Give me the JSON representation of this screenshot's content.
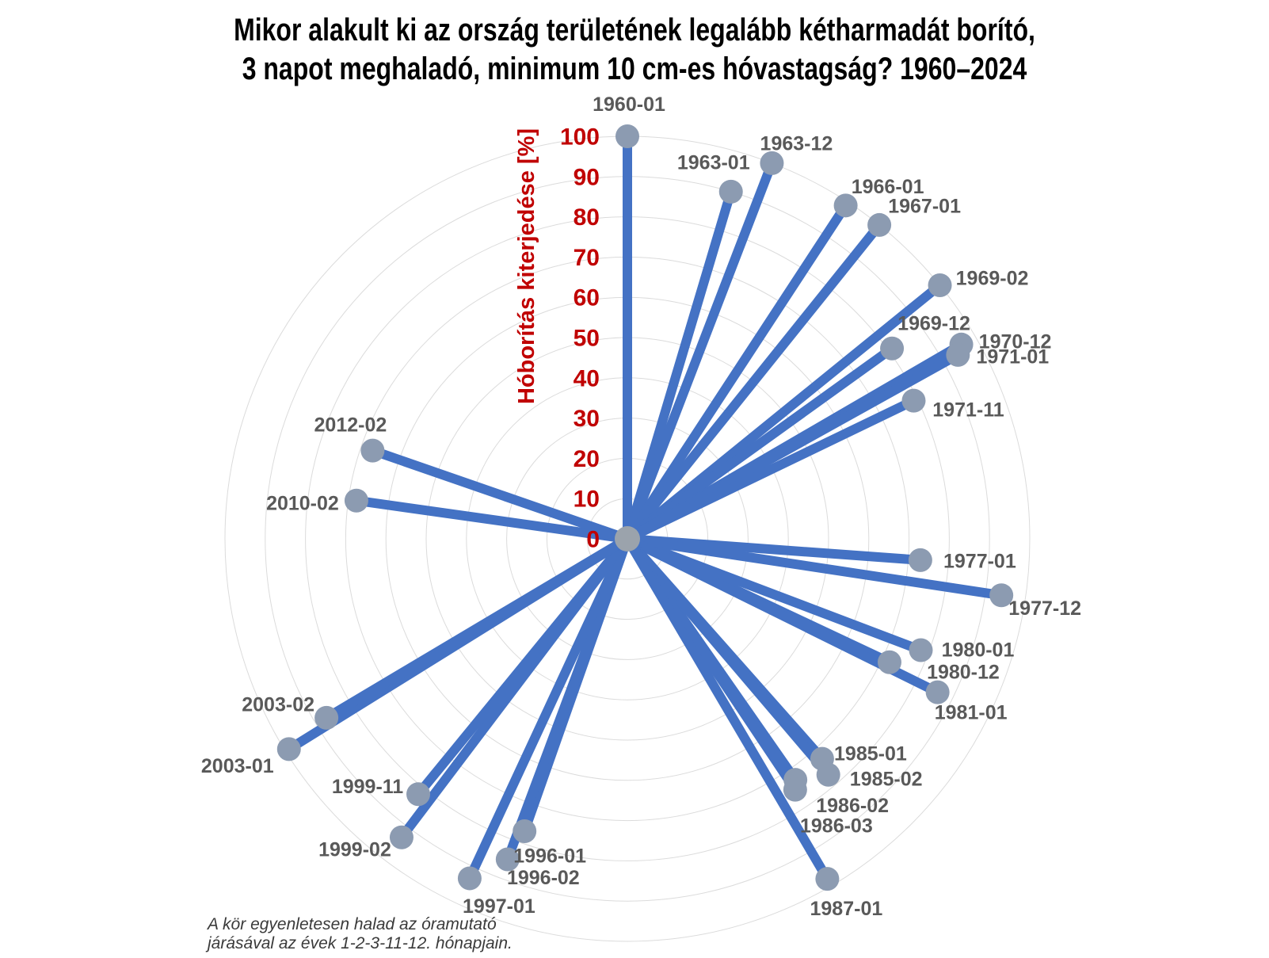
{
  "title": {
    "line1": "Mikor alakult ki az ország területének legalább kétharmadát borító,",
    "line2": "3 napot meghaladó, minimum 10 cm-es hóvastagság? 1960–2024"
  },
  "footnote": {
    "line1": "A kör egyenletesen halad az óramutató",
    "line2": "járásával az évek 1-2-3-11-12. hónapjain."
  },
  "chart_data": {
    "type": "scatter",
    "subtype": "polar-lollipop",
    "title": "Mikor alakult ki az ország területének legalább kétharmadát borító, 3 napot meghaladó, minimum 10 cm-es hóvastagság? 1960–2024",
    "axis_label": "Hóborítás kiterjedése [%]",
    "ticks": [
      0,
      10,
      20,
      30,
      40,
      50,
      60,
      70,
      80,
      90,
      100
    ],
    "range": [
      0,
      100
    ],
    "grid": true,
    "legend": "none",
    "angle_rule": "A kör egyenletesen halad az óramutató járásával az évek 1-2-3-11-12. hónapjain. 65 év × 5 hónap = 325 egyenlő lépés, az óramutató járása szerint, 1960-01 felül.",
    "slots_total": 325,
    "points": [
      {
        "label": "1960-01",
        "slot": 0,
        "value": 100,
        "label_offset": [
          2,
          -41
        ]
      },
      {
        "label": "1963-01",
        "slot": 15,
        "value": 90,
        "label_offset": [
          -22,
          -37
        ]
      },
      {
        "label": "1963-12",
        "slot": 19,
        "value": 100,
        "label_offset": [
          31,
          -25
        ]
      },
      {
        "label": "1966-01",
        "slot": 30,
        "value": 99,
        "label_offset": [
          53,
          -24
        ]
      },
      {
        "label": "1967-01",
        "slot": 35,
        "value": 100,
        "label_offset": [
          57,
          -24
        ]
      },
      {
        "label": "1969-02",
        "slot": 46,
        "value": 100,
        "label_offset": [
          66,
          -9
        ]
      },
      {
        "label": "1969-12",
        "slot": 49,
        "value": 81,
        "label_offset": [
          53,
          -32
        ]
      },
      {
        "label": "1970-12",
        "slot": 54,
        "value": 96,
        "label_offset": [
          68,
          -4
        ]
      },
      {
        "label": "1971-01",
        "slot": 55,
        "value": 94,
        "label_offset": [
          69,
          2
        ]
      },
      {
        "label": "1971-11",
        "slot": 58,
        "value": 79,
        "label_offset": [
          69,
          11
        ]
      },
      {
        "label": "1977-01",
        "slot": 85,
        "value": 73,
        "label_offset": [
          75,
          1
        ]
      },
      {
        "label": "1977-12",
        "slot": 89,
        "value": 94,
        "label_offset": [
          55,
          16
        ]
      },
      {
        "label": "1980-01",
        "slot": 100,
        "value": 78,
        "label_offset": [
          72,
          -1
        ]
      },
      {
        "label": "1980-12",
        "slot": 104,
        "value": 72,
        "label_offset": [
          93,
          12
        ]
      },
      {
        "label": "1981-01",
        "slot": 105,
        "value": 86,
        "label_offset": [
          42,
          25
        ]
      },
      {
        "label": "1985-01",
        "slot": 125,
        "value": 73,
        "label_offset": [
          61,
          -7
        ]
      },
      {
        "label": "1985-02",
        "slot": 126,
        "value": 77,
        "label_offset": [
          73,
          5
        ]
      },
      {
        "label": "1986-02",
        "slot": 131,
        "value": 73,
        "label_offset": [
          72,
          32
        ]
      },
      {
        "label": "1986-03",
        "slot": 132,
        "value": 75,
        "label_offset": [
          52,
          45
        ]
      },
      {
        "label": "1987-01",
        "slot": 135,
        "value": 98,
        "label_offset": [
          24,
          37
        ]
      },
      {
        "label": "1996-01",
        "slot": 180,
        "value": 77,
        "label_offset": [
          32,
          31
        ]
      },
      {
        "label": "1996-02",
        "slot": 181,
        "value": 85,
        "label_offset": [
          45,
          23
        ]
      },
      {
        "label": "1997-01",
        "slot": 185,
        "value": 93,
        "label_offset": [
          37,
          35
        ]
      },
      {
        "label": "1999-02",
        "slot": 196,
        "value": 93,
        "label_offset": [
          -59,
          15
        ]
      },
      {
        "label": "1999-11",
        "slot": 198,
        "value": 82,
        "label_offset": [
          -64,
          -10
        ]
      },
      {
        "label": "2003-01",
        "slot": 215,
        "value": 99,
        "label_offset": [
          -65,
          21
        ]
      },
      {
        "label": "2003-02",
        "slot": 216,
        "value": 87,
        "label_offset": [
          -61,
          -17
        ]
      },
      {
        "label": "2010-02",
        "slot": 251,
        "value": 68,
        "label_offset": [
          -68,
          3
        ]
      },
      {
        "label": "2012-02",
        "slot": 261,
        "value": 67,
        "label_offset": [
          -28,
          -33
        ]
      }
    ],
    "colors": {
      "line": "#4472C4",
      "marker": "#8C9BB1",
      "center_marker": "#9BA3AC",
      "grid": "#DBDBDB",
      "axis_text": "#C00000",
      "point_label": "#595959",
      "title_text": "#000000",
      "footnote_text": "#3A3A3A"
    }
  }
}
